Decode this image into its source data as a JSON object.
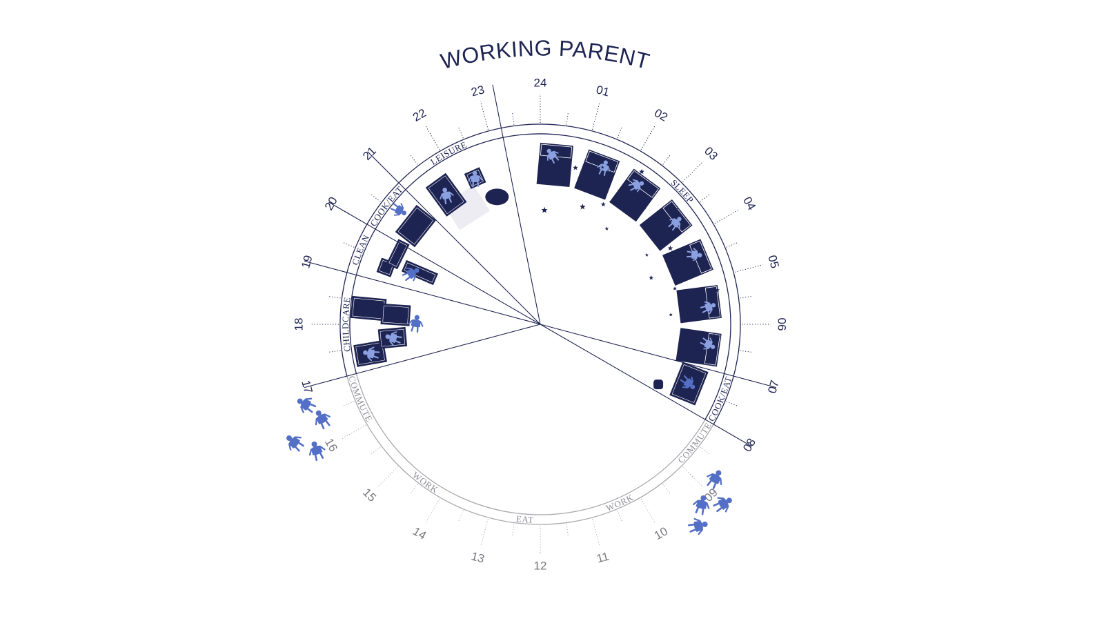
{
  "title": "WORKING PARENT",
  "colors": {
    "primary": "#1e2452",
    "muted": "#a8a8ae",
    "figure": "#5470c6",
    "figure_light": "#8aa0e0"
  },
  "hours": [
    {
      "label": "24",
      "hour": 0,
      "active": true
    },
    {
      "label": "01",
      "hour": 1,
      "active": true
    },
    {
      "label": "02",
      "hour": 2,
      "active": true
    },
    {
      "label": "03",
      "hour": 3,
      "active": true
    },
    {
      "label": "04",
      "hour": 4,
      "active": true
    },
    {
      "label": "05",
      "hour": 5,
      "active": true
    },
    {
      "label": "06",
      "hour": 6,
      "active": true
    },
    {
      "label": "07",
      "hour": 7,
      "active": true
    },
    {
      "label": "08",
      "hour": 8,
      "active": true
    },
    {
      "label": "09",
      "hour": 9,
      "active": false
    },
    {
      "label": "10",
      "hour": 10,
      "active": false
    },
    {
      "label": "11",
      "hour": 11,
      "active": false
    },
    {
      "label": "12",
      "hour": 12,
      "active": false
    },
    {
      "label": "13",
      "hour": 13,
      "active": false
    },
    {
      "label": "14",
      "hour": 14,
      "active": false
    },
    {
      "label": "15",
      "hour": 15,
      "active": false
    },
    {
      "label": "16",
      "hour": 16,
      "active": false
    },
    {
      "label": "17",
      "hour": 17,
      "active": true
    },
    {
      "label": "18",
      "hour": 18,
      "active": true
    },
    {
      "label": "19",
      "hour": 19,
      "active": true
    },
    {
      "label": "20",
      "hour": 20,
      "active": true
    },
    {
      "label": "21",
      "hour": 21,
      "active": true
    },
    {
      "label": "22",
      "hour": 22,
      "active": true
    },
    {
      "label": "23",
      "hour": 23,
      "active": true
    }
  ],
  "activities": [
    {
      "label": "SLEEP",
      "start": 23.25,
      "end": 7.0,
      "active": true
    },
    {
      "label": "COOK/EAT",
      "start": 7.0,
      "end": 8.0,
      "active": true
    },
    {
      "label": "COMMUTE",
      "start": 8.0,
      "end": 9.0,
      "active": false
    },
    {
      "label": "WORK",
      "start": 9.0,
      "end": 11.8,
      "active": false
    },
    {
      "label": "EAT",
      "start": 11.8,
      "end": 12.8,
      "active": false
    },
    {
      "label": "WORK",
      "start": 12.8,
      "end": 16.0,
      "active": false
    },
    {
      "label": "COMMUTE",
      "start": 16.0,
      "end": 17.0,
      "active": false
    },
    {
      "label": "CHILDCARE",
      "start": 17.0,
      "end": 19.0,
      "active": true
    },
    {
      "label": "CLEAN",
      "start": 19.0,
      "end": 20.0,
      "active": true
    },
    {
      "label": "COOK/EAT",
      "start": 20.0,
      "end": 21.0,
      "active": true
    },
    {
      "label": "LEISURE",
      "start": 21.0,
      "end": 23.25,
      "active": true
    }
  ],
  "dividers": [
    23.25,
    21.0,
    20.0,
    19.0,
    17.0,
    7.0,
    8.0
  ],
  "sleep_beds": 7,
  "sleep_stars": 20
}
